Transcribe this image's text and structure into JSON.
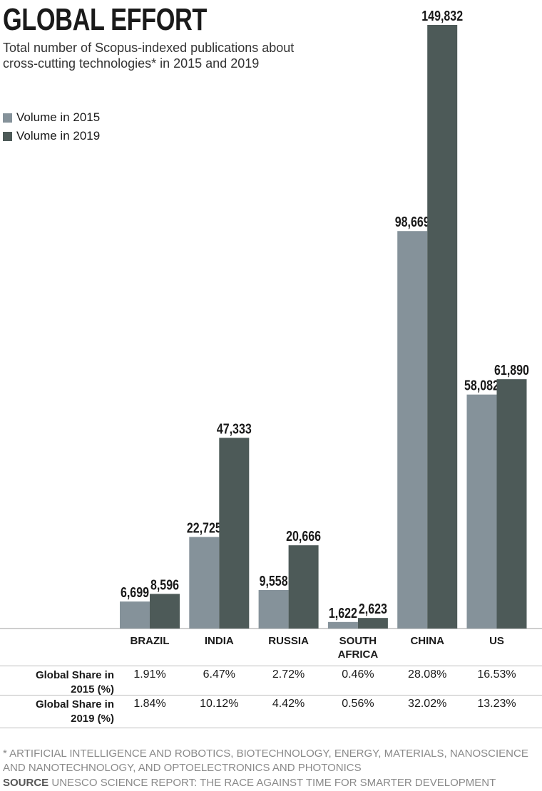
{
  "title": "GLOBAL EFFORT",
  "subtitle": "Total number of Scopus-indexed publications about cross-cutting technologies* in 2015 and 2019",
  "colors": {
    "s2015": "#85929a",
    "s2019": "#4d5a58"
  },
  "chart_data": {
    "type": "bar",
    "title": "GLOBAL EFFORT",
    "subtitle": "Total number of Scopus-indexed publications about cross-cutting technologies* in 2015 and 2019",
    "categories": [
      "BRAZIL",
      "INDIA",
      "RUSSIA",
      "SOUTH AFRICA",
      "CHINA",
      "US"
    ],
    "series": [
      {
        "name": "Volume in 2015",
        "values": [
          6699,
          22725,
          9558,
          1622,
          98669,
          58082
        ],
        "labels": [
          "6,699",
          "22,725",
          "9,558",
          "1,622",
          "98,669",
          "58,082"
        ]
      },
      {
        "name": "Volume in 2019",
        "values": [
          8596,
          47333,
          20666,
          2623,
          149832,
          61890
        ],
        "labels": [
          "8,596",
          "47,333",
          "20,666",
          "2,623",
          "149,832",
          "61,890"
        ]
      }
    ],
    "ylim": [
      0,
      149832
    ],
    "grid": false,
    "legend": "top-left"
  },
  "table": {
    "rows": [
      {
        "label": "Global Share in 2015 (%)",
        "label_lines": [
          "Global Share in",
          "2015 (%)"
        ],
        "values": [
          "1.91%",
          "6.47%",
          "2.72%",
          "0.46%",
          "28.08%",
          "16.53%"
        ]
      },
      {
        "label": "Global Share in 2019 (%)",
        "label_lines": [
          "Global Share in",
          "2019 (%)"
        ],
        "values": [
          "1.84%",
          "10.12%",
          "4.42%",
          "0.56%",
          "32.02%",
          "13.23%"
        ]
      }
    ]
  },
  "footnote": "* ARTIFICIAL INTELLIGENCE AND ROBOTICS, BIOTECHNOLOGY, ENERGY, MATERIALS, NANOSCIENCE AND NANOTECHNOLOGY, AND OPTOELECTRONICS AND PHOTONICS",
  "source": {
    "label": "SOURCE",
    "text": "UNESCO SCIENCE REPORT: THE RACE AGAINST TIME FOR SMARTER DEVELOPMENT"
  }
}
